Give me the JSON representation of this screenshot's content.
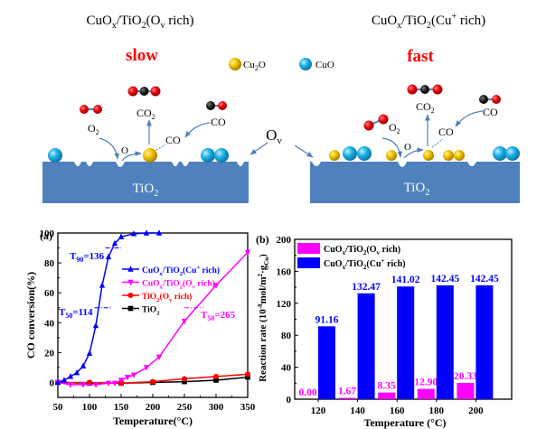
{
  "schematic": {
    "left_title": {
      "main": "CuO",
      "sub1": "x",
      "mid": "/TiO",
      "sub2": "2",
      "tail1": "(O",
      "sub3": "v",
      "tail2": " rich)"
    },
    "right_title": {
      "main": "CuO",
      "sub1": "x",
      "mid": "/TiO",
      "sub2": "2",
      "tail1": "(Cu",
      "sup": "+",
      "tail2": " rich)"
    },
    "left_speed": "slow",
    "right_speed": "fast",
    "legend": [
      {
        "label_main": "Cu",
        "label_sub": "2",
        "label_tail": "O",
        "color": "#f2c200"
      },
      {
        "label_main": "CuO",
        "label_sub": "",
        "label_tail": "",
        "color": "#1ab0e8"
      }
    ],
    "substrate_label": {
      "main": "TiO",
      "sub": "2"
    },
    "vacancy_label": {
      "main": "O",
      "sub": "v"
    },
    "labels": {
      "o2": {
        "main": "O",
        "sub": "2"
      },
      "co2": {
        "main": "CO",
        "sub": "2"
      },
      "co": "CO",
      "o": "O"
    },
    "colors": {
      "substrate": "#4f81bd",
      "speed_text": "#ff0000",
      "arrow": "#4f81bd",
      "oxygen_atom": "#e8000b",
      "carbon_atom": "#111111"
    }
  },
  "chart_data": [
    {
      "panel": "(a)",
      "type": "line",
      "title": "",
      "xlabel": "Temperature(°C)",
      "ylabel": "CO conversion(%)",
      "xlim": [
        50,
        350
      ],
      "ylim": [
        -10,
        100
      ],
      "xticks": [
        50,
        100,
        150,
        200,
        250,
        300,
        350
      ],
      "yticks": [
        0,
        20,
        40,
        60,
        80,
        100
      ],
      "grid": false,
      "legend_position": "center-right",
      "series": [
        {
          "name": "CuOx/TiO2(Cu+ rich)",
          "legend_main": "CuO",
          "legend_sub1": "x",
          "legend_mid": "/TiO",
          "legend_sub2": "2",
          "legend_tail": "(Cu",
          "legend_sup": "+",
          "legend_end": " rich)",
          "color": "#0000ff",
          "marker": "triangle-up",
          "x": [
            50,
            60,
            70,
            80,
            90,
            100,
            110,
            120,
            130,
            140,
            150,
            170,
            190,
            210
          ],
          "y": [
            0,
            1.5,
            4,
            6.5,
            11,
            19.5,
            38,
            65,
            84,
            93,
            97.5,
            99.5,
            100,
            100
          ]
        },
        {
          "name": "CuOx/TiO2(Ov rich)",
          "legend_main": "CuO",
          "legend_sub1": "x",
          "legend_mid": "/TiO",
          "legend_sub2": "2",
          "legend_tail": "(O",
          "legend_sup": "v",
          "legend_end": " rich)",
          "color": "#ff00ff",
          "marker": "triangle-down",
          "x": [
            50,
            70,
            90,
            110,
            130,
            140,
            150,
            160,
            170,
            190,
            210,
            250,
            300,
            350
          ],
          "y": [
            0,
            -1.5,
            -1.5,
            -1.5,
            -0.5,
            -0.5,
            1.5,
            3.5,
            5,
            10,
            17,
            41,
            65,
            87
          ]
        },
        {
          "name": "TiO2(Ov rich)",
          "legend_main": "TiO",
          "legend_sub1": "2",
          "legend_mid": "",
          "legend_sub2": "",
          "legend_tail": "(O",
          "legend_sup": "v",
          "legend_end": " rich)",
          "color": "#ff0000",
          "marker": "circle",
          "x": [
            50,
            100,
            150,
            200,
            250,
            300,
            350
          ],
          "y": [
            0,
            0,
            -0.5,
            0.5,
            2.5,
            4,
            5.5
          ]
        },
        {
          "name": "TiO2",
          "legend_main": "TiO",
          "legend_sub1": "2",
          "legend_mid": "",
          "legend_sub2": "",
          "legend_tail": "",
          "legend_sup": "",
          "legend_end": "",
          "color": "#000000",
          "marker": "square",
          "x": [
            50,
            100,
            150,
            200,
            250,
            300,
            350
          ],
          "y": [
            0,
            -0.5,
            -0.5,
            0,
            0.5,
            1.5,
            3.5
          ]
        }
      ],
      "annotations": [
        {
          "text_main": "T",
          "text_sub": "90",
          "text_tail": "=136",
          "color": "#0000ff",
          "x": 136,
          "y": 90
        },
        {
          "text_main": "T",
          "text_sub": "50",
          "text_tail": "=114",
          "color": "#0000ff",
          "x": 114,
          "y": 50
        },
        {
          "text_main": "T",
          "text_sub": "50",
          "text_tail": "=265",
          "color": "#ff00ff",
          "x": 265,
          "y": 50
        }
      ]
    },
    {
      "panel": "(b)",
      "type": "bar",
      "title": "",
      "xlabel": "Temperature (°C)",
      "ylabel": "Reaction rate (10-8mol/m2·gCu)",
      "ylabel_parts": {
        "main": "Reaction rate (10",
        "sup1": "-8",
        "mid": "mol/m",
        "sup2": "2",
        "dot": "·g",
        "sub": "Cu",
        "end": ")"
      },
      "categories": [
        "120",
        "140",
        "160",
        "180",
        "200"
      ],
      "ylim": [
        0,
        200
      ],
      "yticks": [
        0,
        40,
        80,
        120,
        160,
        200
      ],
      "grid": false,
      "legend_position": "top-left",
      "series": [
        {
          "name": "CuOx/TiO2(Ov rich)",
          "legend_main": "CuO",
          "legend_sub1": "x",
          "legend_mid": "/TiO",
          "legend_sub2": "2",
          "legend_tail": "(O",
          "legend_sup": "v",
          "legend_end": " rich)",
          "color": "#ff00ff",
          "values": [
            0.0,
            1.67,
            8.35,
            12.9,
            20.33
          ],
          "labels": [
            "0.00",
            "1.67",
            "8.35",
            "12.90",
            "20.33"
          ]
        },
        {
          "name": "CuOx/TiO2(Cu+ rich)",
          "legend_main": "CuO",
          "legend_sub1": "x",
          "legend_mid": "/TiO",
          "legend_sub2": "2",
          "legend_tail": "(Cu",
          "legend_sup": "+",
          "legend_end": " rich)",
          "color": "#0000ff",
          "values": [
            91.16,
            132.47,
            141.02,
            142.45,
            142.45
          ],
          "labels": [
            "91.16",
            "132.47",
            "141.02",
            "142.45",
            "142.45"
          ]
        }
      ]
    }
  ]
}
